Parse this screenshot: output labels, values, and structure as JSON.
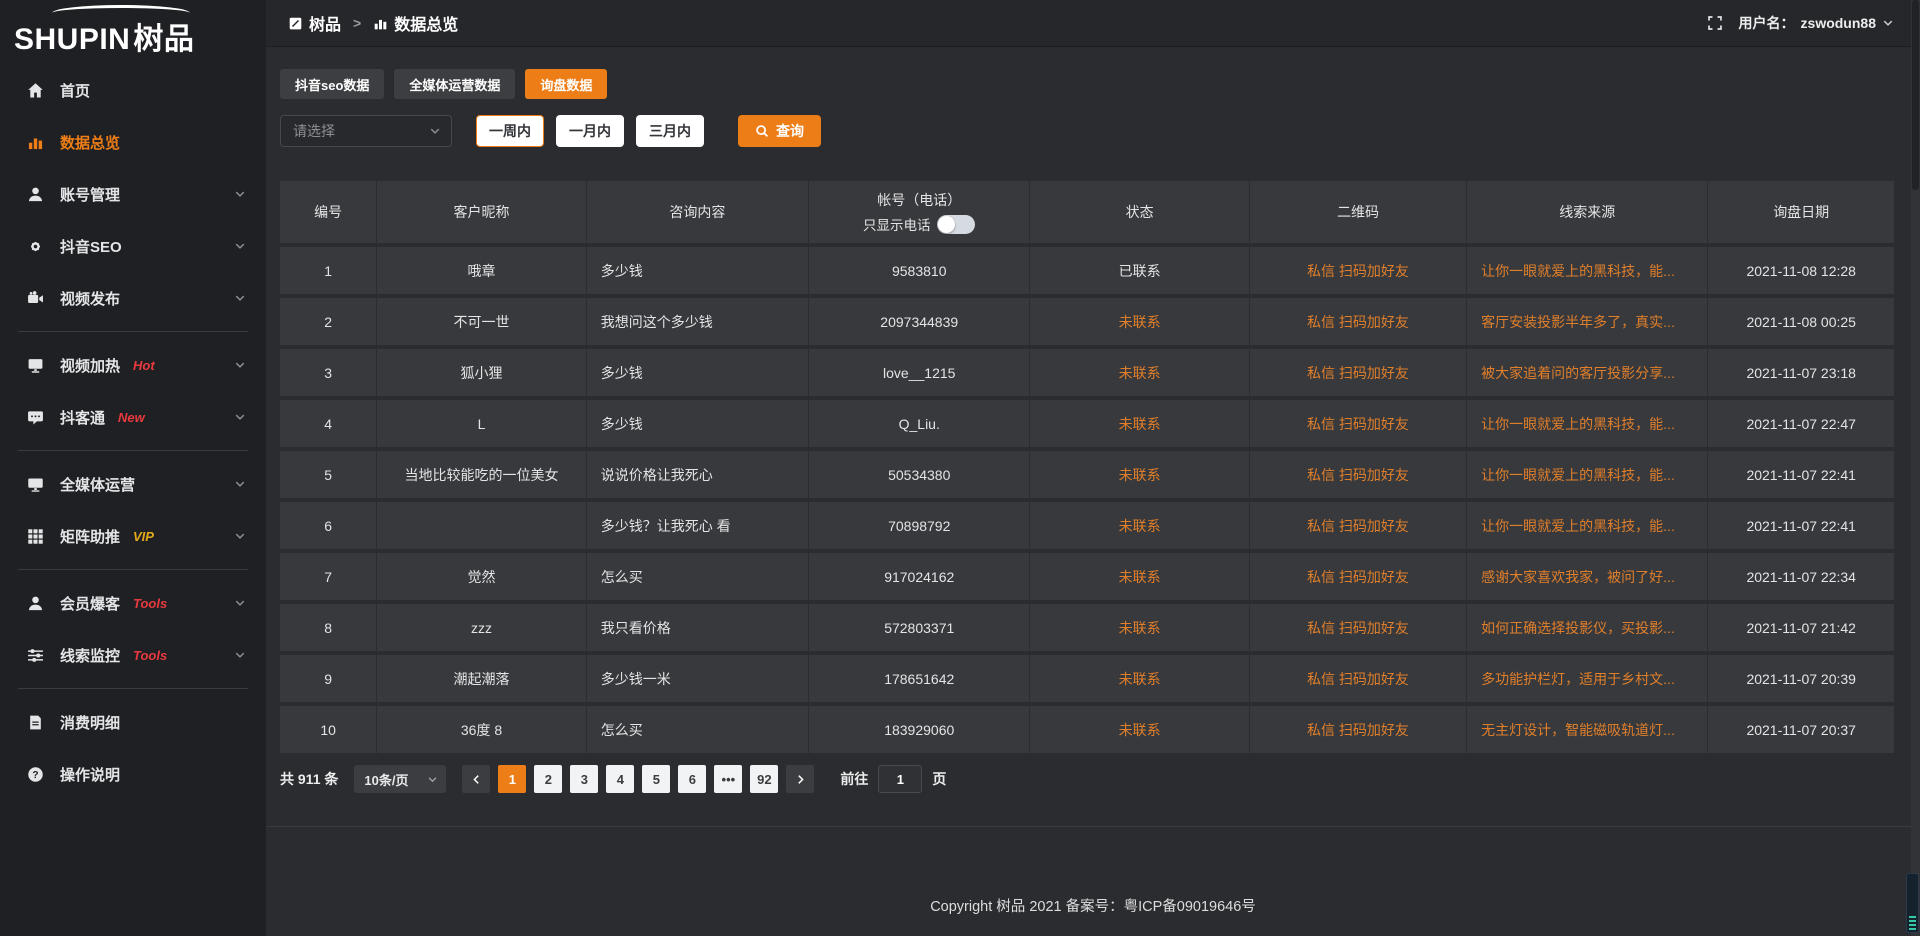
{
  "colors": {
    "accent": "#ed7d17",
    "link_orange": "#e07f2b",
    "badge_red": "#e8393e",
    "badge_vip_yellow": "#e2a91c"
  },
  "logo": {
    "text_en": "SHUPIN",
    "text_cn": "树品"
  },
  "sidebar": {
    "items": [
      {
        "key": "home",
        "icon": "home-icon",
        "label": "首页"
      },
      {
        "key": "data-overview",
        "icon": "bar-chart-icon",
        "label": "数据总览",
        "active": true
      },
      {
        "key": "account-management",
        "icon": "user-icon",
        "label": "账号管理",
        "chevron": true
      },
      {
        "key": "douyin-seo",
        "icon": "gear-icon",
        "label": "抖音SEO",
        "chevron": true
      },
      {
        "key": "video-publish",
        "icon": "video-camera-icon",
        "label": "视频发布",
        "chevron": true,
        "divider_after": true
      },
      {
        "key": "video-heat",
        "icon": "screen-icon",
        "label": "视频加热",
        "badge": "Hot",
        "badge_color": "red",
        "chevron": true
      },
      {
        "key": "douketong",
        "icon": "chat-icon",
        "label": "抖客通",
        "badge": "New",
        "badge_color": "red",
        "chevron": true,
        "divider_after": true
      },
      {
        "key": "omni-media",
        "icon": "monitor-icon",
        "label": "全媒体运营",
        "chevron": true
      },
      {
        "key": "matrix-boost",
        "icon": "grid-icon",
        "label": "矩阵助推",
        "badge": "VIP",
        "badge_color": "yellow",
        "chevron": true,
        "divider_after": true
      },
      {
        "key": "member-burst",
        "icon": "member-icon",
        "label": "会员爆客",
        "badge": "Tools",
        "badge_color": "red",
        "chevron": true
      },
      {
        "key": "lead-monitor",
        "icon": "sliders-icon",
        "label": "线索监控",
        "badge": "Tools",
        "badge_color": "red",
        "chevron": true,
        "divider_after": true
      },
      {
        "key": "consume-detail",
        "icon": "receipt-icon",
        "label": "消费明细"
      },
      {
        "key": "operation-guide",
        "icon": "question-icon",
        "label": "操作说明"
      }
    ]
  },
  "header": {
    "breadcrumb": {
      "home_label": "树品",
      "separator": ">",
      "current_label": "数据总览"
    },
    "username_label": "用户名：",
    "username_value": "zswodun88"
  },
  "tabs": [
    {
      "label": "抖音seo数据"
    },
    {
      "label": "全媒体运营数据"
    },
    {
      "label": "询盘数据",
      "active": true
    }
  ],
  "filters": {
    "select_placeholder": "请选择",
    "ranges": [
      {
        "label": "一周内",
        "active": true
      },
      {
        "label": "一月内"
      },
      {
        "label": "三月内"
      }
    ],
    "query_label": "查询"
  },
  "table": {
    "columns": [
      "编号",
      "客户昵称",
      "咨询内容",
      "帐号（电话）",
      "状态",
      "二维码",
      "线索来源",
      "询盘日期"
    ],
    "phone_toggle_label": "只显示电话",
    "rows": [
      {
        "id": "1",
        "nickname": "哦章",
        "content": "多少钱",
        "account": "9583810",
        "status": "已联系",
        "contacted": true,
        "qr": "私信 扫码加好友",
        "source": "让你一眼就爱上的黑科技，能...",
        "date": "2021-11-08 12:28"
      },
      {
        "id": "2",
        "nickname": "不可一世",
        "content": "我想问这个多少钱",
        "account": "2097344839",
        "status": "未联系",
        "contacted": false,
        "qr": "私信 扫码加好友",
        "source": "客厅安装投影半年多了，真实...",
        "date": "2021-11-08 00:25"
      },
      {
        "id": "3",
        "nickname": "狐小狸",
        "content": "多少钱",
        "account": "love__1215",
        "status": "未联系",
        "contacted": false,
        "qr": "私信 扫码加好友",
        "source": "被大家追着问的客厅投影分享...",
        "date": "2021-11-07 23:18"
      },
      {
        "id": "4",
        "nickname": "L",
        "content": "多少钱",
        "account": "Q_Liu.",
        "status": "未联系",
        "contacted": false,
        "qr": "私信 扫码加好友",
        "source": "让你一眼就爱上的黑科技，能...",
        "date": "2021-11-07 22:47"
      },
      {
        "id": "5",
        "nickname": "当地比较能吃的一位美女",
        "content": "说说价格让我死心",
        "account": "50534380",
        "status": "未联系",
        "contacted": false,
        "qr": "私信 扫码加好友",
        "source": "让你一眼就爱上的黑科技，能...",
        "date": "2021-11-07 22:41"
      },
      {
        "id": "6",
        "nickname": "",
        "content": "多少钱？让我死心 看",
        "account": "70898792",
        "status": "未联系",
        "contacted": false,
        "qr": "私信 扫码加好友",
        "source": "让你一眼就爱上的黑科技，能...",
        "date": "2021-11-07 22:41"
      },
      {
        "id": "7",
        "nickname": "觉然",
        "content": "怎么买",
        "account": "917024162",
        "status": "未联系",
        "contacted": false,
        "qr": "私信 扫码加好友",
        "source": "感谢大家喜欢我家，被问了好...",
        "date": "2021-11-07 22:34"
      },
      {
        "id": "8",
        "nickname": "zzz",
        "content": "我只看价格",
        "account": "572803371",
        "status": "未联系",
        "contacted": false,
        "qr": "私信 扫码加好友",
        "source": "如何正确选择投影仪，买投影...",
        "date": "2021-11-07 21:42"
      },
      {
        "id": "9",
        "nickname": "潮起潮落",
        "content": "多少钱一米",
        "account": "178651642",
        "status": "未联系",
        "contacted": false,
        "qr": "私信 扫码加好友",
        "source": "多功能护栏灯，适用于乡村文...",
        "date": "2021-11-07 20:39"
      },
      {
        "id": "10",
        "nickname": "36度 8",
        "content": "怎么买",
        "account": "183929060",
        "status": "未联系",
        "contacted": false,
        "qr": "私信 扫码加好友",
        "source": "无主灯设计，智能磁吸轨道灯...",
        "date": "2021-11-07 20:37"
      }
    ]
  },
  "pagination": {
    "total_label": "共 911 条",
    "page_size": "10条/页",
    "pages": [
      "1",
      "2",
      "3",
      "4",
      "5",
      "6",
      "•••",
      "92"
    ],
    "active_page": "1",
    "goto_label": "前往",
    "goto_value": "1",
    "goto_suffix": "页"
  },
  "footer": {
    "copyright": "Copyright 树品 2021 备案号：粤ICP备09019646号"
  }
}
